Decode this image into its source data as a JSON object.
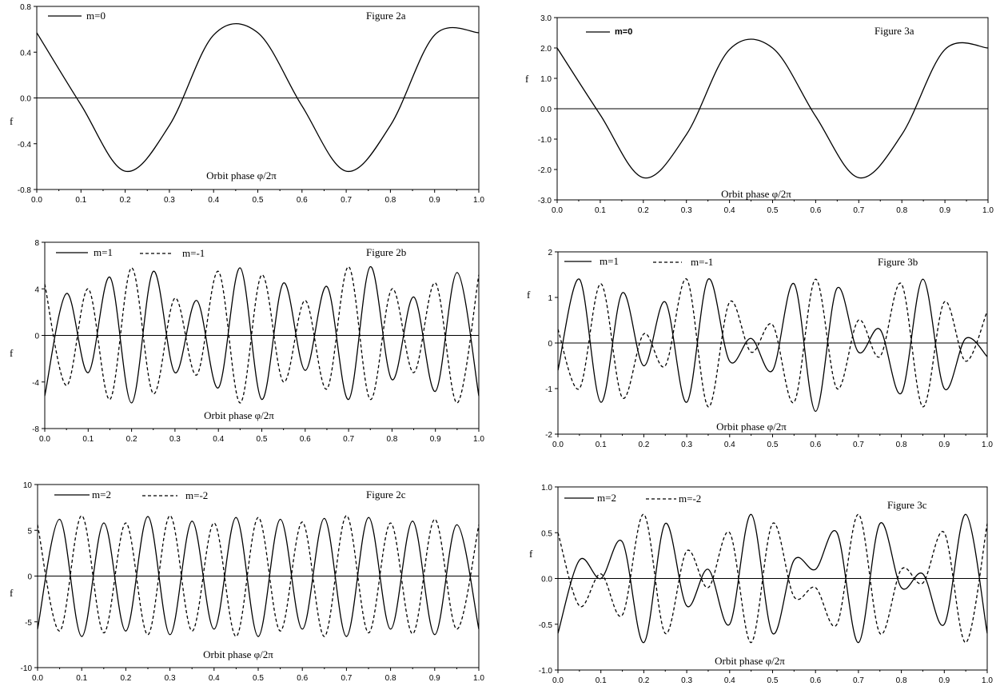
{
  "chart_data": [
    {
      "id": "fig2a",
      "type": "line",
      "title": "Figure 2a",
      "xlabel": "Orbit phase φ/2π",
      "ylabel": "f",
      "xlim": [
        0.0,
        1.0
      ],
      "ylim": [
        -0.8,
        0.8
      ],
      "xticks": [
        "0.0",
        "0.1",
        "0.2",
        "0.3",
        "0.4",
        "0.5",
        "0.6",
        "0.7",
        "0.8",
        "0.9",
        "1.0"
      ],
      "yticks": [
        {
          "v": 0.8,
          "label": "0.8"
        },
        {
          "v": 0.4,
          "label": "0.4"
        },
        {
          "v": 0.0,
          "label": "0.0"
        },
        {
          "v": -0.4,
          "label": "-0.4"
        },
        {
          "v": -0.8,
          "label": "-0.8"
        }
      ],
      "series": [
        {
          "name": "m=0",
          "style": "solid",
          "x": [
            0.0,
            0.1,
            0.2,
            0.3,
            0.4,
            0.5,
            0.6,
            0.7,
            0.8,
            0.9,
            1.0
          ],
          "y": [
            0.57,
            -0.06,
            -0.64,
            -0.24,
            0.55,
            0.57,
            -0.07,
            -0.64,
            -0.24,
            0.55,
            0.57
          ]
        }
      ]
    },
    {
      "id": "fig3a",
      "type": "line",
      "title": "Figure 3a",
      "xlabel": "Orbit phase φ/2π",
      "ylabel": "f",
      "xlim": [
        0.0,
        1.0
      ],
      "ylim": [
        -3.0,
        3.0
      ],
      "xticks": [
        "0.0",
        "0.1",
        "0.2",
        "0.3",
        "0.4",
        "0.5",
        "0.6",
        "0.7",
        "0.8",
        "0.9",
        "1.0"
      ],
      "yticks": [
        {
          "v": 3.0,
          "label": "3.0"
        },
        {
          "v": 2.0,
          "label": "2.0"
        },
        {
          "v": 1.0,
          "label": "1.0"
        },
        {
          "v": 0.0,
          "label": "0.0"
        },
        {
          "v": -1.0,
          "label": "-1.0"
        },
        {
          "v": -2.0,
          "label": "-2.0"
        },
        {
          "v": -3.0,
          "label": "-3.0"
        }
      ],
      "series": [
        {
          "name": "m=0",
          "style": "solid",
          "x": [
            0.0,
            0.1,
            0.2,
            0.3,
            0.4,
            0.5,
            0.6,
            0.7,
            0.8,
            0.9,
            1.0
          ],
          "y": [
            2.0,
            -0.2,
            -2.27,
            -0.85,
            1.95,
            2.0,
            -0.25,
            -2.27,
            -0.85,
            1.95,
            2.0
          ]
        }
      ]
    },
    {
      "id": "fig2b",
      "type": "line",
      "title": "Figure 2b",
      "xlabel": "Orbit phase φ/2π",
      "ylabel": "f",
      "xlim": [
        0.0,
        1.0
      ],
      "ylim": [
        -8,
        8
      ],
      "xticks": [
        "0.0",
        "0.1",
        "0.2",
        "0.3",
        "0.4",
        "0.5",
        "0.6",
        "0.7",
        "0.8",
        "0.9",
        "1.0"
      ],
      "yticks": [
        {
          "v": 8,
          "label": "8"
        },
        {
          "v": 4,
          "label": "4"
        },
        {
          "v": 0,
          "label": "0"
        },
        {
          "v": -4,
          "label": "-4"
        },
        {
          "v": -8,
          "label": "-8"
        }
      ],
      "series": [
        {
          "name": "m=1",
          "style": "solid",
          "x": [
            0.0,
            0.05,
            0.1,
            0.15,
            0.2,
            0.25,
            0.3,
            0.35,
            0.4,
            0.45,
            0.5,
            0.55,
            0.6,
            0.65,
            0.7,
            0.75,
            0.8,
            0.85,
            0.9,
            0.95,
            1.0
          ],
          "y": [
            -5.2,
            3.6,
            -3.2,
            5.0,
            -5.8,
            5.5,
            -3.2,
            3.0,
            -4.5,
            5.8,
            -5.5,
            4.5,
            -3.0,
            4.2,
            -5.5,
            5.9,
            -3.8,
            3.3,
            -4.8,
            5.4,
            -5.2
          ]
        },
        {
          "name": "m=-1",
          "style": "dashed",
          "x": [
            0.0,
            0.05,
            0.1,
            0.15,
            0.2,
            0.25,
            0.3,
            0.35,
            0.4,
            0.45,
            0.5,
            0.55,
            0.6,
            0.65,
            0.7,
            0.75,
            0.8,
            0.85,
            0.9,
            0.95,
            1.0
          ],
          "y": [
            4.4,
            -4.3,
            4.0,
            -5.5,
            5.8,
            -5.0,
            3.2,
            -3.4,
            5.5,
            -5.8,
            5.2,
            -4.0,
            3.0,
            -4.6,
            5.9,
            -5.5,
            4.0,
            -3.2,
            4.5,
            -5.8,
            5.2
          ]
        }
      ]
    },
    {
      "id": "fig3b",
      "type": "line",
      "title": "Figure 3b",
      "xlabel": "Orbit phase φ/2π",
      "ylabel": "f",
      "xlim": [
        0.0,
        1.0
      ],
      "ylim": [
        -2,
        2
      ],
      "xticks": [
        "0.0",
        "0.1",
        "0.2",
        "0.3",
        "0.4",
        "0.5",
        "0.6",
        "0.7",
        "0.8",
        "0.9",
        "1.0"
      ],
      "yticks": [
        {
          "v": 2,
          "label": "2"
        },
        {
          "v": 1,
          "label": "1"
        },
        {
          "v": 0,
          "label": "0"
        },
        {
          "v": -1,
          "label": "-1"
        },
        {
          "v": -2,
          "label": "-2"
        }
      ],
      "series": [
        {
          "name": "m=1",
          "style": "solid",
          "x": [
            0.0,
            0.05,
            0.1,
            0.15,
            0.2,
            0.25,
            0.3,
            0.35,
            0.4,
            0.45,
            0.5,
            0.55,
            0.6,
            0.65,
            0.7,
            0.75,
            0.8,
            0.85,
            0.9,
            0.95,
            1.0
          ],
          "y": [
            -0.6,
            1.4,
            -1.3,
            1.1,
            -0.5,
            0.9,
            -1.3,
            1.4,
            -0.4,
            0.1,
            -0.6,
            1.3,
            -1.5,
            1.2,
            -0.2,
            0.3,
            -1.1,
            1.4,
            -1.0,
            0.1,
            -0.3
          ]
        },
        {
          "name": "m=-1",
          "style": "dashed",
          "x": [
            0.0,
            0.05,
            0.1,
            0.15,
            0.2,
            0.25,
            0.3,
            0.35,
            0.4,
            0.45,
            0.5,
            0.55,
            0.6,
            0.65,
            0.7,
            0.75,
            0.8,
            0.85,
            0.9,
            0.95,
            1.0
          ],
          "y": [
            0.3,
            -1.0,
            1.3,
            -1.2,
            0.2,
            -0.5,
            1.4,
            -1.4,
            0.9,
            -0.2,
            0.4,
            -1.3,
            1.4,
            -1.0,
            0.5,
            -0.3,
            1.3,
            -1.4,
            0.9,
            -0.4,
            0.7
          ]
        }
      ]
    },
    {
      "id": "fig2c",
      "type": "line",
      "title": "Figure 2c",
      "xlabel": "Orbit phase φ/2π",
      "ylabel": "f",
      "xlim": [
        0.0,
        1.0
      ],
      "ylim": [
        -10,
        10
      ],
      "xticks": [
        "0.0",
        "0.1",
        "0.2",
        "0.3",
        "0.4",
        "0.5",
        "0.6",
        "0.7",
        "0.8",
        "0.9",
        "1.0"
      ],
      "yticks": [
        {
          "v": 10,
          "label": "10"
        },
        {
          "v": 5,
          "label": "5"
        },
        {
          "v": 0,
          "label": "0"
        },
        {
          "v": -5,
          "label": "-5"
        },
        {
          "v": -10,
          "label": "-10"
        }
      ],
      "series": [
        {
          "name": "m=2",
          "style": "solid",
          "x": [
            0.0,
            0.05,
            0.1,
            0.15,
            0.2,
            0.25,
            0.3,
            0.35,
            0.4,
            0.45,
            0.5,
            0.55,
            0.6,
            0.65,
            0.7,
            0.75,
            0.8,
            0.85,
            0.9,
            0.95,
            1.0
          ],
          "y": [
            -5.8,
            6.2,
            -6.6,
            5.8,
            -6.0,
            6.5,
            -6.4,
            6.0,
            -5.8,
            6.4,
            -6.6,
            6.2,
            -5.8,
            6.3,
            -6.6,
            6.4,
            -5.8,
            6.0,
            -6.4,
            5.6,
            -5.8
          ]
        },
        {
          "name": "m=-2",
          "style": "dashed",
          "x": [
            0.0,
            0.05,
            0.1,
            0.15,
            0.2,
            0.25,
            0.3,
            0.35,
            0.4,
            0.45,
            0.5,
            0.55,
            0.6,
            0.65,
            0.7,
            0.75,
            0.8,
            0.85,
            0.9,
            0.95,
            1.0
          ],
          "y": [
            5.6,
            -6.0,
            6.6,
            -6.2,
            5.8,
            -6.4,
            6.6,
            -6.0,
            5.8,
            -6.6,
            6.4,
            -6.0,
            5.9,
            -6.6,
            6.6,
            -6.2,
            5.8,
            -6.3,
            6.2,
            -5.8,
            5.6
          ]
        }
      ]
    },
    {
      "id": "fig3c",
      "type": "line",
      "title": "Figure 3c",
      "xlabel": "Orbit phase φ/2π",
      "ylabel": "f",
      "xlim": [
        0.0,
        1.0
      ],
      "ylim": [
        -1.0,
        1.0
      ],
      "xticks": [
        "0.0",
        "0.1",
        "0.2",
        "0.3",
        "0.4",
        "0.5",
        "0.6",
        "0.7",
        "0.8",
        "0.9",
        "1.0"
      ],
      "yticks": [
        {
          "v": 1.0,
          "label": "1.0"
        },
        {
          "v": 0.5,
          "label": "0.5"
        },
        {
          "v": 0.0,
          "label": "0.0"
        },
        {
          "v": -0.5,
          "label": "-0.5"
        },
        {
          "v": -1.0,
          "label": "-1.0"
        }
      ],
      "series": [
        {
          "name": "m=2",
          "style": "solid",
          "x": [
            0.0,
            0.05,
            0.1,
            0.15,
            0.2,
            0.25,
            0.3,
            0.35,
            0.4,
            0.45,
            0.5,
            0.55,
            0.6,
            0.65,
            0.7,
            0.75,
            0.8,
            0.85,
            0.9,
            0.95,
            1.0
          ],
          "y": [
            -0.6,
            0.2,
            0.0,
            0.4,
            -0.7,
            0.6,
            -0.3,
            0.1,
            -0.5,
            0.7,
            -0.6,
            0.2,
            0.1,
            0.5,
            -0.7,
            0.6,
            -0.1,
            0.05,
            -0.5,
            0.7,
            -0.6
          ]
        },
        {
          "name": "m=-2",
          "style": "dashed",
          "x": [
            0.0,
            0.05,
            0.1,
            0.15,
            0.2,
            0.25,
            0.3,
            0.35,
            0.4,
            0.45,
            0.5,
            0.55,
            0.6,
            0.65,
            0.7,
            0.75,
            0.8,
            0.85,
            0.9,
            0.95,
            1.0
          ],
          "y": [
            0.5,
            -0.3,
            0.05,
            -0.4,
            0.7,
            -0.6,
            0.3,
            -0.1,
            0.5,
            -0.7,
            0.6,
            -0.2,
            -0.1,
            -0.5,
            0.7,
            -0.6,
            0.1,
            -0.05,
            0.5,
            -0.7,
            0.6
          ]
        }
      ]
    }
  ]
}
